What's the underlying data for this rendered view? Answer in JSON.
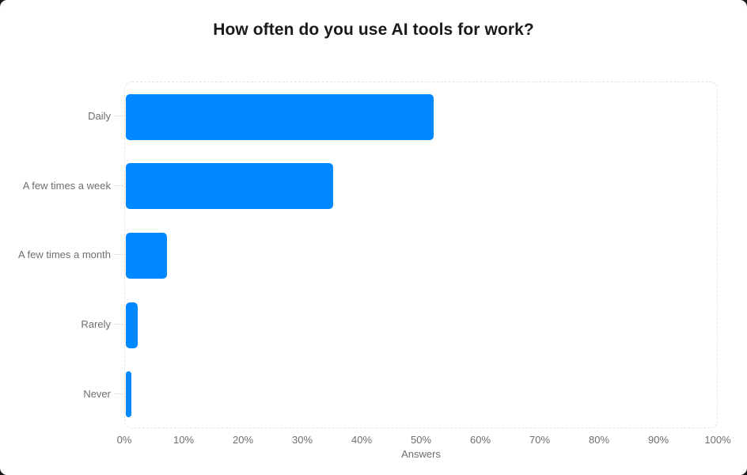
{
  "page": {
    "title": "How often do you use AI tools for work?"
  },
  "chart_data": {
    "type": "bar",
    "orientation": "horizontal",
    "title": "How often do you use AI tools for work?",
    "categories": [
      "Daily",
      "A few times a week",
      "A few times a month",
      "Rarely",
      "Never"
    ],
    "values": [
      52,
      35,
      7,
      2,
      1
    ],
    "value_unit": "%",
    "xlabel": "Answers",
    "ylabel": "",
    "xlim": [
      0,
      100
    ],
    "tick_labels": [
      "0%",
      "10%",
      "20%",
      "30%",
      "40%",
      "50%",
      "60%",
      "70%",
      "80%",
      "90%",
      "100%"
    ],
    "tick_positions": [
      0,
      10,
      20,
      30,
      40,
      50,
      60,
      70,
      80,
      90,
      100
    ],
    "bar_color": "#0088ff",
    "plot_border_color": "#e3e3e3",
    "grid": false,
    "legend": false
  }
}
